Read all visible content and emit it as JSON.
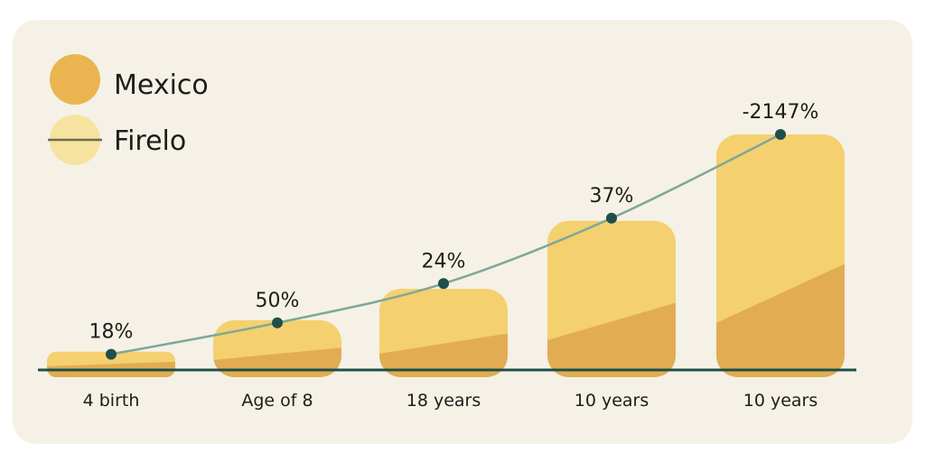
{
  "chart_data": {
    "type": "bar",
    "categories": [
      "4 birth",
      "Age of 8",
      "18 years",
      "10 years",
      "10 years"
    ],
    "series": [
      {
        "name": "Mexico",
        "type": "bar",
        "values": [
          7,
          19,
          31,
          57,
          90
        ]
      },
      {
        "name": "Firelo",
        "type": "line",
        "values": [
          6,
          18,
          33,
          58,
          90
        ]
      }
    ],
    "data_labels": [
      "18%",
      "50%",
      "24%",
      "37%",
      "-2147%"
    ],
    "ylim": [
      0,
      100
    ],
    "grid": false,
    "legend_position": "top-left",
    "colors": {
      "bar_light": "#f4d06f",
      "bar_dark": "#e2ad52",
      "line": "#7fa79b",
      "marker": "#1f4f4a",
      "axis": "#1f4f4a",
      "legend_mexico": "#eab550",
      "legend_firelo": "#f7e3a0",
      "legend_line": "#6d6a4c"
    }
  }
}
